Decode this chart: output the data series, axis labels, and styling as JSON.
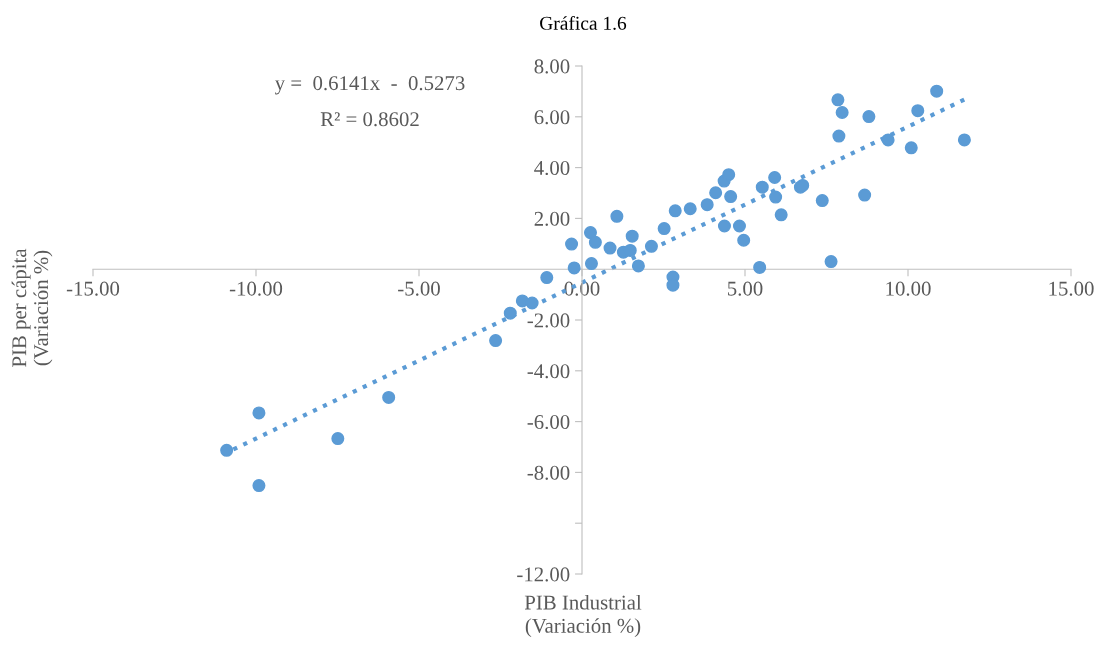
{
  "chart_data": {
    "type": "scatter",
    "title": "Gráfica 1.6",
    "xlabel": "PIB Industrial\n(Variación %)",
    "ylabel": "PIB per cápita\n(Variación %)",
    "annotations": [
      "y =  0.6141x  -  0.5273",
      "R² = 0.8602"
    ],
    "xlim": [
      -15,
      15
    ],
    "xticks": [
      {
        "value": -15,
        "label": "-15.00"
      },
      {
        "value": -10,
        "label": "-10.00"
      },
      {
        "value": -5,
        "label": "-5.00"
      },
      {
        "value": 0,
        "label": "0.00"
      },
      {
        "value": 5,
        "label": "5.00"
      },
      {
        "value": 10,
        "label": "10.00"
      },
      {
        "value": 15,
        "label": "15.00"
      }
    ],
    "ylim": [
      -12,
      8
    ],
    "yticks": [
      {
        "value": -12,
        "label": "-12.00"
      },
      {
        "value": -10,
        "label": null
      },
      {
        "value": -8,
        "label": "-8.00"
      },
      {
        "value": -6,
        "label": "-6.00"
      },
      {
        "value": -4,
        "label": "-4.00"
      },
      {
        "value": -2,
        "label": "-2.00"
      },
      {
        "value": 0,
        "label": null
      },
      {
        "value": 2,
        "label": "2.00"
      },
      {
        "value": 4,
        "label": "4.00"
      },
      {
        "value": 6,
        "label": "6.00"
      },
      {
        "value": 8,
        "label": "8.00"
      }
    ],
    "grid": false,
    "series": [
      {
        "color": "#5b9bd5",
        "marker": "circle",
        "x": [
          -10.9,
          -9.91,
          -9.91,
          -7.49,
          -5.93,
          -2.65,
          -2.2,
          -1.83,
          -1.53,
          -1.08,
          -0.24,
          0.29,
          -0.32,
          0.26,
          0.41,
          0.86,
          1.07,
          1.27,
          1.48,
          1.54,
          1.73,
          2.13,
          2.52,
          2.79,
          2.79,
          2.86,
          3.32,
          3.84,
          4.1,
          4.36,
          4.5,
          4.56,
          4.37,
          4.83,
          4.96,
          5.45,
          5.53,
          5.91,
          5.94,
          6.11,
          6.7,
          6.77,
          7.37,
          7.64,
          7.85,
          7.98,
          7.88,
          8.67,
          8.8,
          9.39,
          10.1,
          10.3,
          10.88,
          11.73
        ],
        "values": [
          -7.13,
          -5.66,
          -8.52,
          -6.67,
          -5.05,
          -2.81,
          -1.73,
          -1.25,
          -1.33,
          -0.33,
          0.05,
          0.22,
          0.99,
          1.44,
          1.06,
          0.83,
          2.08,
          0.67,
          0.74,
          1.3,
          0.13,
          0.9,
          1.6,
          -0.31,
          -0.63,
          2.3,
          2.38,
          2.54,
          3.01,
          3.47,
          3.72,
          2.86,
          1.7,
          1.7,
          1.14,
          0.07,
          3.23,
          3.61,
          2.84,
          2.14,
          3.23,
          3.3,
          2.7,
          0.3,
          6.67,
          6.17,
          5.24,
          2.92,
          6.01,
          5.09,
          4.78,
          6.24,
          7.01,
          5.09
        ]
      },
      {
        "type": "line",
        "color": "#5b9bd5",
        "line_style": "dotted",
        "marker": "none",
        "x": [
          -11,
          11.8
        ],
        "values": [
          -7.28,
          6.72
        ]
      }
    ]
  }
}
